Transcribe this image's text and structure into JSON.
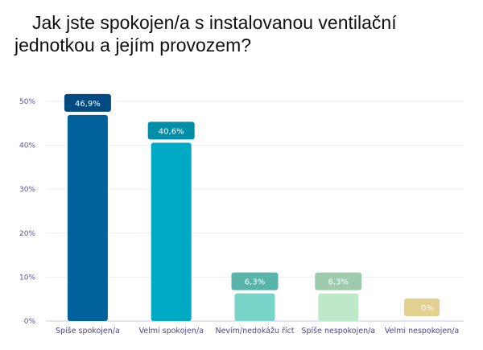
{
  "title_line1": "Jak jste spokojen/a s instalovanou ventilační",
  "title_line2": "jednotkou a jejím provozem?",
  "chart_data": {
    "type": "bar",
    "categories": [
      "Spíše spokojen/a",
      "Velmi spokojen/a",
      "Nevím/nedokážu říct",
      "Spíše nespokojen/a",
      "Velmi nespokojen/a"
    ],
    "values": [
      46.9,
      40.6,
      6.3,
      6.3,
      0
    ],
    "value_labels": [
      "46,9%",
      "40,6%",
      "6,3%",
      "6,3%",
      "0%"
    ],
    "bar_colors": [
      "#00619d",
      "#00aac5",
      "#77d4c9",
      "#bde9ca",
      "#e5d394"
    ],
    "label_colors": [
      "#004a82",
      "#008ea8",
      "#58b4a9",
      "#9dcbab",
      "#e2d090"
    ],
    "yticks": [
      "0%",
      "10%",
      "20%",
      "30%",
      "40%",
      "50%"
    ],
    "ylim": [
      0,
      50
    ],
    "grid": true,
    "legend": "none"
  }
}
